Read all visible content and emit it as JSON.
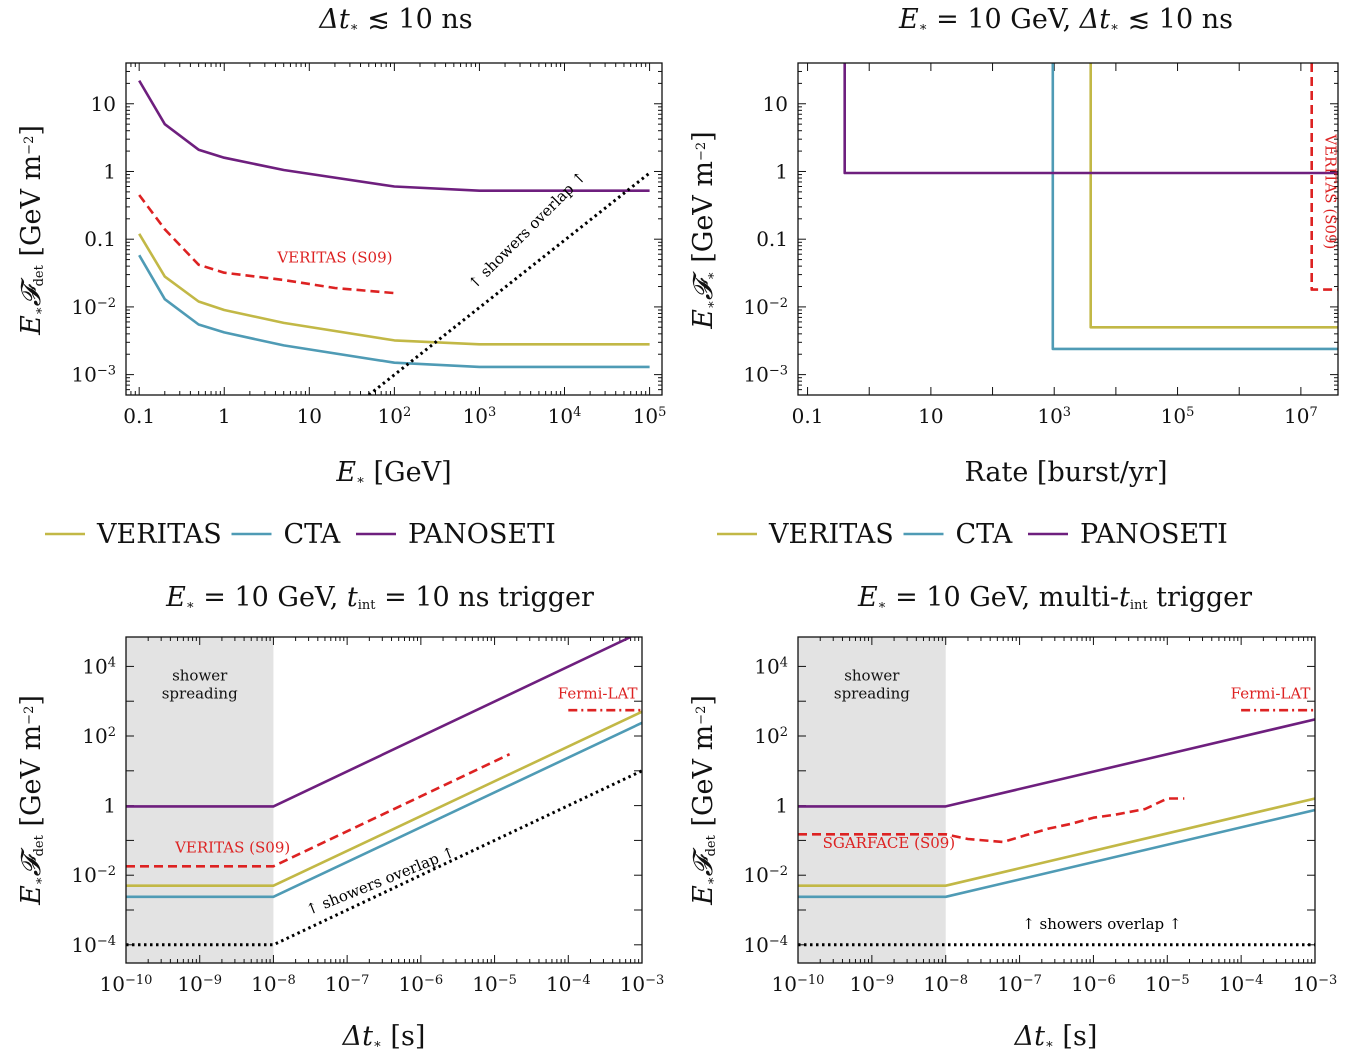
{
  "colors": {
    "VERITAS": "#c2b846",
    "CTA": "#4f9bb5",
    "PANOSETI": "#6e1f7e",
    "reference": "#dd2222",
    "overlap": "#000000",
    "shade": "#e3e3e3"
  },
  "legends": [
    {
      "entries": [
        {
          "name": "VERITAS",
          "colorKey": "VERITAS"
        },
        {
          "name": "CTA",
          "colorKey": "CTA"
        },
        {
          "name": "PANOSETI",
          "colorKey": "PANOSETI"
        }
      ]
    },
    {
      "entries": [
        {
          "name": "VERITAS",
          "colorKey": "VERITAS"
        },
        {
          "name": "CTA",
          "colorKey": "CTA"
        },
        {
          "name": "PANOSETI",
          "colorKey": "PANOSETI"
        }
      ]
    }
  ],
  "chart_data": [
    {
      "type": "line",
      "title": "Δt* ≲ 10 ns",
      "xlabel": "E* [GeV]",
      "ylabel": "E* F_det [GeV m^-2]",
      "xscale": "log",
      "yscale": "log",
      "xlim": [
        0.07,
        140000
      ],
      "ylim": [
        0.0005,
        40
      ],
      "xticks": [
        {
          "v": 0.1,
          "t": "0.1"
        },
        {
          "v": 1,
          "t": "1"
        },
        {
          "v": 10,
          "t": "10"
        },
        {
          "v": 100,
          "t": "10",
          "e": "2"
        },
        {
          "v": 1000,
          "t": "10",
          "e": "3"
        },
        {
          "v": 10000,
          "t": "10",
          "e": "4"
        },
        {
          "v": 100000,
          "t": "10",
          "e": "5"
        }
      ],
      "yticks": [
        {
          "v": 0.001,
          "t": "10",
          "e": "−3"
        },
        {
          "v": 0.01,
          "t": "10",
          "e": "−2"
        },
        {
          "v": 0.1,
          "t": "0.1"
        },
        {
          "v": 1,
          "t": "1"
        },
        {
          "v": 10,
          "t": "10"
        }
      ],
      "series": [
        {
          "name": "VERITAS",
          "colorKey": "VERITAS",
          "dash": "solid",
          "x": [
            0.1,
            0.2,
            0.5,
            1,
            5,
            100,
            1000,
            100000
          ],
          "y": [
            0.12,
            0.028,
            0.012,
            0.009,
            0.0058,
            0.0032,
            0.0028,
            0.0028
          ]
        },
        {
          "name": "CTA",
          "colorKey": "CTA",
          "dash": "solid",
          "x": [
            0.1,
            0.2,
            0.5,
            1,
            5,
            100,
            1000,
            100000
          ],
          "y": [
            0.058,
            0.013,
            0.0055,
            0.0042,
            0.0027,
            0.0015,
            0.0013,
            0.0013
          ]
        },
        {
          "name": "PANOSETI",
          "colorKey": "PANOSETI",
          "dash": "solid",
          "x": [
            0.1,
            0.2,
            0.5,
            1,
            5,
            100,
            1000,
            100000
          ],
          "y": [
            22,
            5,
            2.1,
            1.6,
            1.05,
            0.6,
            0.52,
            0.52
          ]
        },
        {
          "name": "VERITAS (S09)",
          "colorKey": "reference",
          "dash": "dashed",
          "x": [
            0.1,
            0.2,
            0.5,
            1,
            5,
            20,
            100
          ],
          "y": [
            0.45,
            0.14,
            0.042,
            0.032,
            0.025,
            0.019,
            0.016
          ]
        },
        {
          "name": "showers overlap",
          "colorKey": "overlap",
          "dash": "dotted",
          "x": [
            50,
            100000
          ],
          "y": [
            0.0005,
            0.95
          ]
        }
      ],
      "annotations": [
        {
          "text": "VERITAS (S09)",
          "x": 20,
          "y": 0.045,
          "colorKey": "reference",
          "rotate": 0
        },
        {
          "text": "↑ showers overlap ↑",
          "x": 4000,
          "y": 0.12,
          "colorKey": "overlap",
          "rotate": -45
        }
      ]
    },
    {
      "type": "line",
      "title": "E* = 10 GeV, Δt* ≲ 10 ns",
      "xlabel": "Rate [burst/yr]",
      "ylabel": "E* F* [GeV m^-2]",
      "xscale": "log",
      "yscale": "log",
      "xlim": [
        0.07,
        40000000
      ],
      "ylim": [
        0.0005,
        40
      ],
      "xticks": [
        {
          "v": 0.1,
          "t": "0.1"
        },
        {
          "v": 10,
          "t": "10"
        },
        {
          "v": 1000,
          "t": "10",
          "e": "3"
        },
        {
          "v": 100000,
          "t": "10",
          "e": "5"
        },
        {
          "v": 10000000,
          "t": "10",
          "e": "7"
        }
      ],
      "yticks": [
        {
          "v": 0.001,
          "t": "10",
          "e": "−3"
        },
        {
          "v": 0.01,
          "t": "10",
          "e": "−2"
        },
        {
          "v": 0.1,
          "t": "0.1"
        },
        {
          "v": 1,
          "t": "1"
        },
        {
          "v": 10,
          "t": "10"
        }
      ],
      "series": [
        {
          "name": "VERITAS",
          "colorKey": "VERITAS",
          "dash": "solid",
          "x": [
            3900,
            3900,
            40000000
          ],
          "y": [
            40,
            0.005,
            0.005
          ]
        },
        {
          "name": "CTA",
          "colorKey": "CTA",
          "dash": "solid",
          "x": [
            950,
            950,
            40000000
          ],
          "y": [
            40,
            0.0024,
            0.0024
          ]
        },
        {
          "name": "PANOSETI",
          "colorKey": "PANOSETI",
          "dash": "solid",
          "x": [
            0.4,
            0.4,
            40000000
          ],
          "y": [
            40,
            0.95,
            0.95
          ]
        },
        {
          "name": "VERITAS (S09)",
          "colorKey": "reference",
          "dash": "dashed",
          "x": [
            15000000,
            15000000,
            40000000
          ],
          "y": [
            40,
            0.018,
            0.018
          ]
        }
      ],
      "annotations": [
        {
          "text": "VERITAS (S09)",
          "x": 25000000,
          "y": 0.5,
          "colorKey": "reference",
          "rotate": 90
        }
      ]
    },
    {
      "type": "line",
      "title": "E* = 10 GeV, t_int = 10 ns trigger",
      "xlabel": "Δt* [s]",
      "ylabel": "E* F_det [GeV m^-2]",
      "xscale": "log",
      "yscale": "log",
      "xlim": [
        1e-10,
        0.001
      ],
      "ylim": [
        3e-05,
        70000
      ],
      "shade": {
        "x": [
          1e-10,
          1e-08
        ],
        "label": [
          "shower",
          "spreading"
        ],
        "labelX": 1e-09,
        "labelY": 4000
      },
      "xticks": [
        {
          "v": 1e-10,
          "t": "10",
          "e": "−10"
        },
        {
          "v": 1e-09,
          "t": "10",
          "e": "−9"
        },
        {
          "v": 1e-08,
          "t": "10",
          "e": "−8"
        },
        {
          "v": 1e-07,
          "t": "10",
          "e": "−7"
        },
        {
          "v": 1e-06,
          "t": "10",
          "e": "−6"
        },
        {
          "v": 1e-05,
          "t": "10",
          "e": "−5"
        },
        {
          "v": 0.0001,
          "t": "10",
          "e": "−4"
        },
        {
          "v": 0.001,
          "t": "10",
          "e": "−3"
        }
      ],
      "yticks": [
        {
          "v": 0.0001,
          "t": "10",
          "e": "−4"
        },
        {
          "v": 0.01,
          "t": "10",
          "e": "−2"
        },
        {
          "v": 1,
          "t": "1"
        },
        {
          "v": 100,
          "t": "10",
          "e": "2"
        },
        {
          "v": 10000,
          "t": "10",
          "e": "4"
        }
      ],
      "series": [
        {
          "name": "VERITAS",
          "colorKey": "VERITAS",
          "dash": "solid",
          "x": [
            1e-10,
            1e-08,
            0.001
          ],
          "y": [
            0.005,
            0.005,
            500
          ]
        },
        {
          "name": "CTA",
          "colorKey": "CTA",
          "dash": "solid",
          "x": [
            1e-10,
            1e-08,
            0.001
          ],
          "y": [
            0.0024,
            0.0024,
            240
          ]
        },
        {
          "name": "PANOSETI",
          "colorKey": "PANOSETI",
          "dash": "solid",
          "x": [
            1e-10,
            1e-08,
            0.0007
          ],
          "y": [
            0.95,
            0.95,
            70000
          ]
        },
        {
          "name": "VERITAS (S09)",
          "colorKey": "reference",
          "dash": "dashed",
          "x": [
            1e-10,
            1e-08,
            1.6e-05
          ],
          "y": [
            0.018,
            0.018,
            30
          ]
        },
        {
          "name": "Fermi-LAT",
          "colorKey": "reference",
          "dash": "dashdot",
          "x": [
            0.0001,
            0.001
          ],
          "y": [
            550,
            550
          ]
        },
        {
          "name": "showers overlap",
          "colorKey": "overlap",
          "dash": "dotted",
          "x": [
            1e-10,
            1e-08,
            0.001
          ],
          "y": [
            0.0001,
            0.0001,
            10
          ]
        }
      ],
      "annotations": [
        {
          "text": "VERITAS (S09)",
          "x": 2.8e-09,
          "y": 0.045,
          "colorKey": "reference",
          "rotate": 0
        },
        {
          "text": "Fermi-LAT",
          "x": 0.00025,
          "y": 1200,
          "colorKey": "reference",
          "rotate": 0
        },
        {
          "text": "↑ showers overlap ↑",
          "x": 3e-07,
          "y": 0.005,
          "colorKey": "overlap",
          "rotate": -22
        }
      ]
    },
    {
      "type": "line",
      "title": "E* = 10 GeV, multi-t_int trigger",
      "xlabel": "Δt* [s]",
      "ylabel": "E* F_det [GeV m^-2]",
      "xscale": "log",
      "yscale": "log",
      "xlim": [
        1e-10,
        0.001
      ],
      "ylim": [
        3e-05,
        70000
      ],
      "shade": {
        "x": [
          1e-10,
          1e-08
        ],
        "label": [
          "shower",
          "spreading"
        ],
        "labelX": 1e-09,
        "labelY": 4000
      },
      "xticks": [
        {
          "v": 1e-10,
          "t": "10",
          "e": "−10"
        },
        {
          "v": 1e-09,
          "t": "10",
          "e": "−9"
        },
        {
          "v": 1e-08,
          "t": "10",
          "e": "−8"
        },
        {
          "v": 1e-07,
          "t": "10",
          "e": "−7"
        },
        {
          "v": 1e-06,
          "t": "10",
          "e": "−6"
        },
        {
          "v": 1e-05,
          "t": "10",
          "e": "−5"
        },
        {
          "v": 0.0001,
          "t": "10",
          "e": "−4"
        },
        {
          "v": 0.001,
          "t": "10",
          "e": "−3"
        }
      ],
      "yticks": [
        {
          "v": 0.0001,
          "t": "10",
          "e": "−4"
        },
        {
          "v": 0.01,
          "t": "10",
          "e": "−2"
        },
        {
          "v": 1,
          "t": "1"
        },
        {
          "v": 100,
          "t": "10",
          "e": "2"
        },
        {
          "v": 10000,
          "t": "10",
          "e": "4"
        }
      ],
      "series": [
        {
          "name": "VERITAS",
          "colorKey": "VERITAS",
          "dash": "solid",
          "x": [
            1e-10,
            1e-08,
            0.001
          ],
          "y": [
            0.005,
            0.005,
            1.6
          ]
        },
        {
          "name": "CTA",
          "colorKey": "CTA",
          "dash": "solid",
          "x": [
            1e-10,
            1e-08,
            0.001
          ],
          "y": [
            0.0024,
            0.0024,
            0.75
          ]
        },
        {
          "name": "PANOSETI",
          "colorKey": "PANOSETI",
          "dash": "solid",
          "x": [
            1e-10,
            1e-08,
            0.001
          ],
          "y": [
            0.95,
            0.95,
            300
          ]
        },
        {
          "name": "SGARFACE (S09)",
          "colorKey": "reference",
          "dash": "dashed",
          "x": [
            1e-10,
            1e-08,
            2e-08,
            6e-08,
            1.2e-07,
            2.5e-07,
            5e-07,
            1e-06,
            2e-06,
            5e-06,
            1e-05,
            1.7e-05
          ],
          "y": [
            0.15,
            0.15,
            0.11,
            0.09,
            0.14,
            0.22,
            0.3,
            0.45,
            0.55,
            0.8,
            1.6,
            1.6
          ]
        },
        {
          "name": "Fermi-LAT",
          "colorKey": "reference",
          "dash": "dashdot",
          "x": [
            0.0001,
            0.001
          ],
          "y": [
            550,
            550
          ]
        },
        {
          "name": "showers overlap",
          "colorKey": "overlap",
          "dash": "dotted",
          "x": [
            1e-10,
            0.001
          ],
          "y": [
            0.0001,
            0.0001
          ]
        }
      ],
      "annotations": [
        {
          "text": "SGARFACE (S09)",
          "x": 1.7e-09,
          "y": 0.06,
          "colorKey": "reference",
          "rotate": 0
        },
        {
          "text": "Fermi-LAT",
          "x": 0.00025,
          "y": 1200,
          "colorKey": "reference",
          "rotate": 0
        },
        {
          "text": "↑ showers overlap ↑",
          "x": 1.3e-06,
          "y": 0.00028,
          "colorKey": "overlap",
          "rotate": 0
        }
      ]
    }
  ]
}
